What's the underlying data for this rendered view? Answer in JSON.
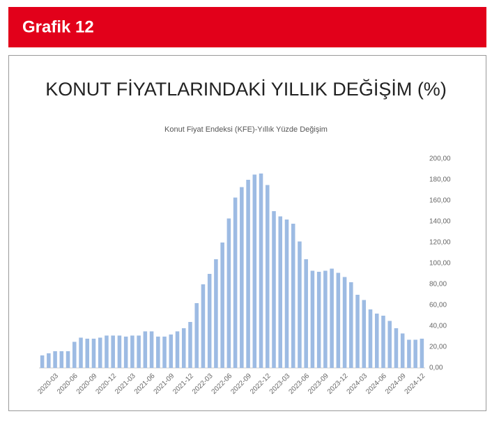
{
  "header": "Grafik 12",
  "chart_data": {
    "type": "bar",
    "title": "KONUT FİYATLARINDAKİ YILLIK DEĞİŞİM (%)",
    "subtitle": "Konut Fiyat Endeksi (KFE)-Yıllık Yüzde Değişim",
    "categories": [
      null,
      null,
      "2020-03",
      null,
      null,
      "2020-06",
      null,
      null,
      "2020-09",
      null,
      null,
      "2020-12",
      null,
      null,
      "2021-03",
      null,
      null,
      "2021-06",
      null,
      null,
      "2021-09",
      null,
      null,
      "2021-12",
      null,
      null,
      "2022-03",
      null,
      null,
      "2022-06",
      null,
      null,
      "2022-09",
      null,
      null,
      "2022-12",
      null,
      null,
      "2023-03",
      null,
      null,
      "2023-06",
      null,
      null,
      "2023-09",
      null,
      null,
      "2023-12",
      null,
      null,
      "2024-03",
      null,
      null,
      "2024-06",
      null,
      null,
      "2024-09",
      null,
      null,
      "2024-12"
    ],
    "values": [
      12,
      14,
      16,
      16,
      16,
      25,
      29,
      28,
      28,
      29,
      31,
      31,
      31,
      30,
      31,
      31,
      35,
      35,
      30,
      30,
      32,
      35,
      38,
      44,
      62,
      80,
      90,
      104,
      120,
      143,
      163,
      173,
      180,
      185,
      186,
      175,
      150,
      145,
      142,
      138,
      121,
      104,
      93,
      92,
      93,
      95,
      91,
      87,
      82,
      70,
      65,
      56,
      52,
      50,
      45,
      38,
      33,
      27,
      27,
      28
    ],
    "color": "#9dbbe3",
    "ylim": [
      0,
      200
    ],
    "yticks": [
      {
        "value": 0,
        "label": "0,00"
      },
      {
        "value": 20,
        "label": "20,00"
      },
      {
        "value": 40,
        "label": "40,00"
      },
      {
        "value": 60,
        "label": "60,00"
      },
      {
        "value": 80,
        "label": "80,00"
      },
      {
        "value": 100,
        "label": "100,00"
      },
      {
        "value": 120,
        "label": "120,00"
      },
      {
        "value": 140,
        "label": "140,00"
      },
      {
        "value": 160,
        "label": "160,00"
      },
      {
        "value": 180,
        "label": "180,00"
      },
      {
        "value": 200,
        "label": "200,00"
      }
    ],
    "y_axis_side": "right",
    "grid": false
  }
}
